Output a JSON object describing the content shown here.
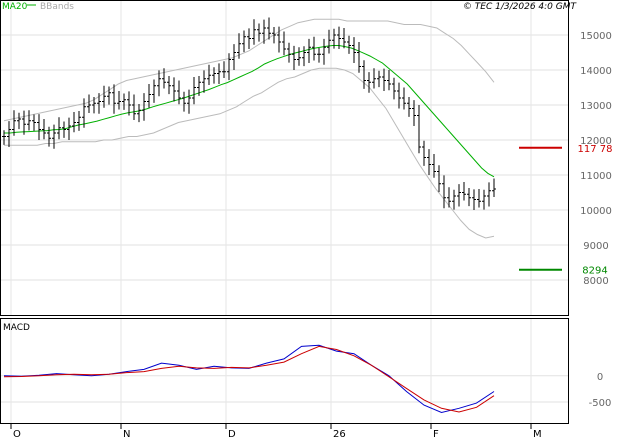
{
  "header": {
    "legend": [
      {
        "label": "MA20",
        "color": "#00b000"
      },
      {
        "label": "BBands",
        "color": "#aaaaaa"
      }
    ],
    "source": "© TEC 1/3/2026 4:0 GMT"
  },
  "chart_data": [
    {
      "type": "candlestick",
      "panel": "price",
      "ylim": [
        7000,
        16000
      ],
      "yticks": [
        8000,
        9000,
        10000,
        11000,
        12000,
        13000,
        14000,
        15000
      ],
      "ytick_labels": [
        "8000",
        "9000",
        "10000",
        "11000",
        "12000",
        "13000",
        "14000",
        "15000"
      ],
      "xticks": [
        {
          "label": "O",
          "index": 1
        },
        {
          "label": "N",
          "index": 23
        },
        {
          "label": "D",
          "index": 44
        },
        {
          "label": "26",
          "index": 65
        },
        {
          "label": "F",
          "index": 85
        },
        {
          "label": "M",
          "index": 105
        }
      ],
      "close": [
        12100,
        12300,
        12550,
        12600,
        12450,
        12550,
        12500,
        12300,
        12200,
        12050,
        12200,
        12350,
        12300,
        12400,
        12500,
        12650,
        12950,
        13000,
        13050,
        13100,
        13250,
        13350,
        13050,
        13100,
        13150,
        13000,
        12750,
        12850,
        13100,
        13300,
        13550,
        13750,
        13650,
        13550,
        13400,
        13200,
        13050,
        13200,
        13500,
        13650,
        13750,
        13850,
        13900,
        13950,
        13950,
        14300,
        14500,
        14750,
        14950,
        14900,
        15150,
        15050,
        15200,
        15050,
        15000,
        14800,
        14600,
        14450,
        14300,
        14350,
        14500,
        14650,
        14450,
        14450,
        14650,
        14850,
        15000,
        14900,
        14800,
        14700,
        14500,
        14100,
        13700,
        13650,
        13750,
        13800,
        13700,
        13600,
        13400,
        13200,
        13050,
        12900,
        12700,
        11800,
        11500,
        11300,
        11100,
        10750,
        10350,
        10250,
        10400,
        10500,
        10450,
        10350,
        10300,
        10250,
        10400,
        10550,
        10600
      ],
      "lines": {
        "MA20": [
          12200,
          12200,
          12220,
          12230,
          12240,
          12250,
          12260,
          12270,
          12290,
          12300,
          12330,
          12380,
          12430,
          12460,
          12500,
          12540,
          12590,
          12640,
          12690,
          12740,
          12780,
          12810,
          12840,
          12890,
          12950,
          13000,
          13050,
          13100,
          13150,
          13200,
          13260,
          13320,
          13380,
          13440,
          13510,
          13580,
          13640,
          13720,
          13800,
          13880,
          13960,
          14060,
          14170,
          14250,
          14320,
          14380,
          14440,
          14490,
          14530,
          14580,
          14620,
          14650,
          14680,
          14700,
          14700,
          14670,
          14630,
          14560,
          14480,
          14400,
          14300,
          14200,
          14050,
          13900,
          13750,
          13600,
          13400,
          13200,
          13000,
          12800,
          12600,
          12400,
          12200,
          12000,
          11800,
          11600,
          11400,
          11200,
          11050,
          10950
        ],
        "bb_upper": [
          12550,
          12600,
          12650,
          12700,
          12750,
          12800,
          12850,
          12900,
          12950,
          13000,
          13050,
          13150,
          13300,
          13450,
          13600,
          13700,
          13750,
          13800,
          13850,
          13900,
          13950,
          14000,
          14050,
          14100,
          14150,
          14200,
          14250,
          14300,
          14350,
          14450,
          14550,
          14700,
          14850,
          15000,
          15150,
          15250,
          15350,
          15400,
          15450,
          15450,
          15450,
          15450,
          15400,
          15400,
          15400,
          15400,
          15400,
          15400,
          15350,
          15300,
          15300,
          15300,
          15250,
          15200,
          15050,
          14900,
          14700,
          14450,
          14200,
          13950,
          13650
        ],
        "bb_lower": [
          11850,
          11850,
          11850,
          11850,
          11850,
          11900,
          11900,
          11950,
          11950,
          11950,
          11950,
          11950,
          12000,
          12000,
          12050,
          12100,
          12100,
          12150,
          12200,
          12300,
          12400,
          12500,
          12550,
          12600,
          12650,
          12700,
          12750,
          12850,
          12950,
          13100,
          13250,
          13350,
          13500,
          13650,
          13750,
          13800,
          13900,
          14000,
          14050,
          14050,
          14050,
          14000,
          13900,
          13700,
          13500,
          13200,
          12900,
          12500,
          12100,
          11700,
          11300,
          10950,
          10600,
          10300,
          10000,
          9700,
          9450,
          9300,
          9200,
          9250
        ]
      },
      "reference_levels": [
        {
          "label": "117 78",
          "value": 11778,
          "color": "#cc0000"
        },
        {
          "label": "8294",
          "value": 8294,
          "color": "#008800"
        }
      ]
    },
    {
      "type": "line",
      "panel": "macd",
      "title": "MACD",
      "ylim": [
        -900,
        1100
      ],
      "yticks": [
        0,
        -500
      ],
      "ytick_labels": [
        "0",
        "-500"
      ],
      "series": [
        {
          "color": "#0000cc",
          "values": [
            0,
            -10,
            10,
            40,
            20,
            0,
            30,
            80,
            120,
            240,
            200,
            120,
            180,
            150,
            140,
            240,
            320,
            560,
            580,
            470,
            420,
            200,
            0,
            -300,
            -560,
            -700,
            -620,
            -520,
            -300
          ]
        },
        {
          "color": "#cc0000",
          "values": [
            -20,
            -15,
            0,
            20,
            30,
            20,
            30,
            60,
            80,
            140,
            180,
            150,
            140,
            160,
            150,
            200,
            260,
            420,
            560,
            500,
            380,
            200,
            -20,
            -240,
            -460,
            -620,
            -690,
            -600,
            -380
          ]
        }
      ]
    }
  ]
}
